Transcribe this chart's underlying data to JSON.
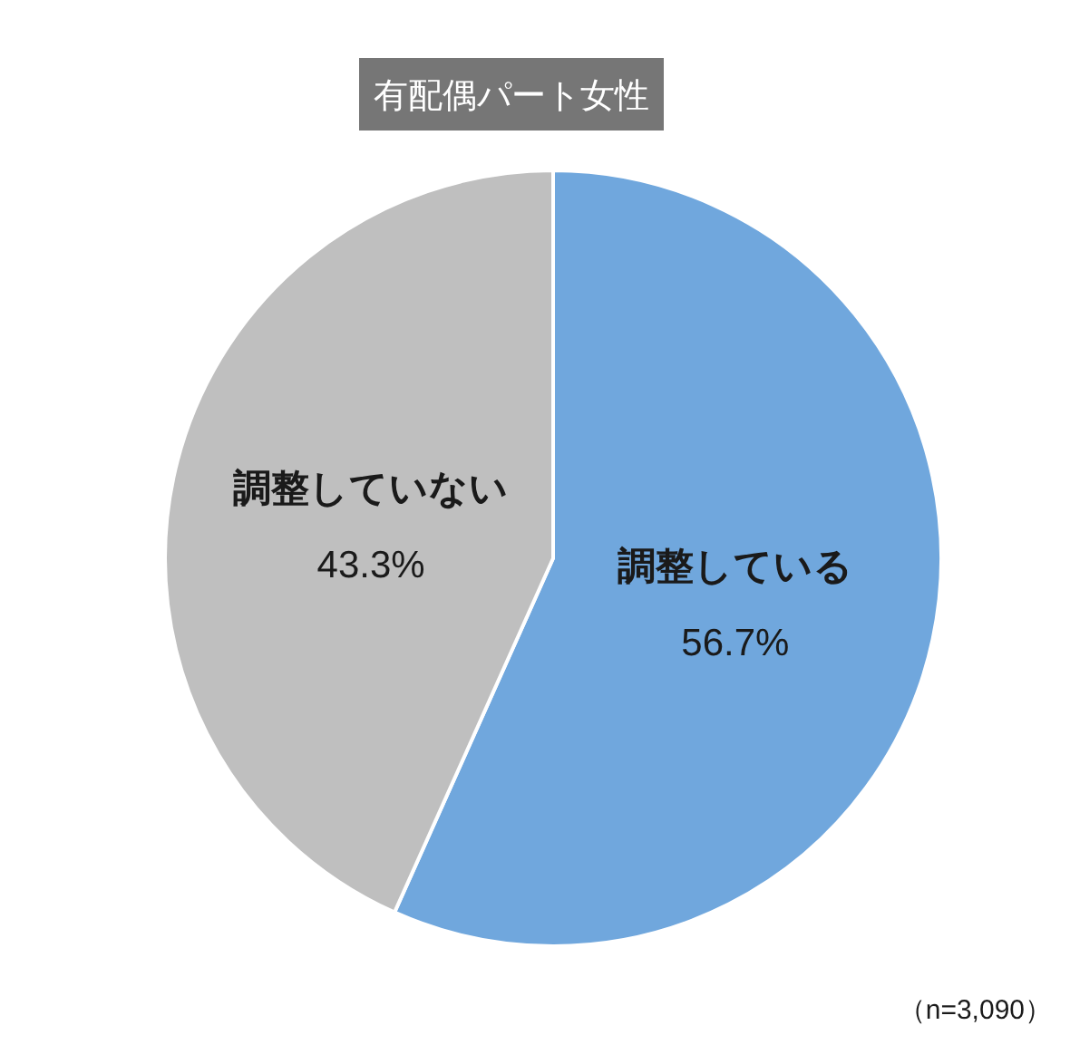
{
  "chart_data": {
    "type": "pie",
    "title": "有配偶パート女性",
    "categories": [
      "調整している",
      "調整していない"
    ],
    "values": [
      56.7,
      43.3
    ],
    "colors": [
      "#70a7dd",
      "#bfbfbf"
    ],
    "value_labels": [
      "56.7%",
      "43.3%"
    ],
    "annotations": [
      "（n=3,090）"
    ]
  }
}
